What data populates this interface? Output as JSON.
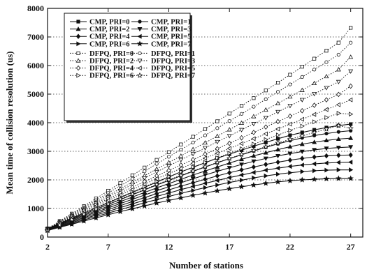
{
  "chart_data": {
    "type": "line",
    "xlabel": "Number of stations",
    "ylabel": "Mean time of collision resolution (us)",
    "xlim": [
      2,
      28
    ],
    "ylim": [
      0,
      8000
    ],
    "xticks": [
      2,
      7,
      12,
      17,
      22,
      27
    ],
    "yticks": [
      0,
      1000,
      2000,
      3000,
      4000,
      5000,
      6000,
      7000,
      8000
    ],
    "grid": "horizontal dotted",
    "legend_placement": "top-left",
    "x": [
      2,
      3,
      4,
      5,
      6,
      7,
      8,
      9,
      10,
      11,
      12,
      13,
      14,
      15,
      16,
      17,
      18,
      19,
      20,
      21,
      22,
      23,
      24,
      25,
      26,
      27
    ],
    "series": [
      {
        "name": "CMP, PRI=0",
        "marker": "square",
        "style": "solid",
        "values": [
          300,
          480,
          660,
          840,
          1020,
          1200,
          1380,
          1560,
          1740,
          1920,
          2100,
          2280,
          2440,
          2600,
          2760,
          2900,
          3040,
          3180,
          3310,
          3440,
          3560,
          3660,
          3750,
          3830,
          3900,
          3950
        ]
      },
      {
        "name": "CMP, PRI=1",
        "marker": "circle",
        "style": "solid",
        "values": [
          290,
          460,
          630,
          800,
          970,
          1140,
          1310,
          1480,
          1650,
          1820,
          1980,
          2140,
          2300,
          2450,
          2600,
          2740,
          2880,
          3010,
          3140,
          3260,
          3370,
          3470,
          3550,
          3620,
          3680,
          3720
        ]
      },
      {
        "name": "CMP, PRI=2",
        "marker": "triangle-up",
        "style": "solid",
        "values": [
          280,
          440,
          600,
          760,
          920,
          1080,
          1240,
          1400,
          1560,
          1720,
          1870,
          2020,
          2170,
          2310,
          2450,
          2590,
          2720,
          2840,
          2950,
          3060,
          3160,
          3250,
          3320,
          3380,
          3430,
          3460
        ]
      },
      {
        "name": "CMP, PRI=3",
        "marker": "triangle-down",
        "style": "solid",
        "values": [
          270,
          420,
          570,
          720,
          870,
          1020,
          1170,
          1320,
          1470,
          1620,
          1760,
          1900,
          2040,
          2170,
          2300,
          2420,
          2540,
          2650,
          2750,
          2840,
          2920,
          2990,
          3050,
          3100,
          3130,
          3150
        ]
      },
      {
        "name": "CMP, PRI=4",
        "marker": "diamond",
        "style": "solid",
        "values": [
          260,
          400,
          540,
          680,
          820,
          960,
          1100,
          1240,
          1380,
          1520,
          1650,
          1780,
          1900,
          2020,
          2140,
          2250,
          2350,
          2450,
          2540,
          2620,
          2690,
          2750,
          2800,
          2840,
          2860,
          2870
        ]
      },
      {
        "name": "CMP, PRI=5",
        "marker": "triangle-left",
        "style": "solid",
        "values": [
          250,
          380,
          510,
          640,
          770,
          900,
          1030,
          1160,
          1290,
          1420,
          1540,
          1660,
          1770,
          1880,
          1980,
          2080,
          2170,
          2260,
          2340,
          2410,
          2470,
          2520,
          2560,
          2590,
          2610,
          2620
        ]
      },
      {
        "name": "CMP, PRI=6",
        "marker": "triangle-right",
        "style": "solid",
        "values": [
          240,
          360,
          480,
          600,
          720,
          840,
          960,
          1080,
          1200,
          1310,
          1420,
          1530,
          1630,
          1730,
          1820,
          1910,
          1990,
          2070,
          2140,
          2200,
          2250,
          2290,
          2320,
          2340,
          2350,
          2350
        ]
      },
      {
        "name": "CMP, PRI=7",
        "marker": "star",
        "style": "solid",
        "values": [
          230,
          340,
          450,
          560,
          670,
          780,
          890,
          990,
          1090,
          1190,
          1280,
          1370,
          1460,
          1540,
          1620,
          1690,
          1760,
          1820,
          1880,
          1930,
          1970,
          2000,
          2020,
          2040,
          2050,
          2050
        ]
      },
      {
        "name": "DFPQ, PRI=0",
        "marker": "square",
        "style": "dotted",
        "values": [
          300,
          560,
          820,
          1080,
          1350,
          1620,
          1890,
          2160,
          2430,
          2700,
          2970,
          3240,
          3510,
          3780,
          4050,
          4320,
          4590,
          4860,
          5130,
          5400,
          5680,
          5960,
          6240,
          6520,
          6800,
          7320
        ]
      },
      {
        "name": "DFPQ, PRI=1",
        "marker": "circle",
        "style": "dotted",
        "values": [
          290,
          540,
          790,
          1040,
          1290,
          1540,
          1790,
          2040,
          2300,
          2560,
          2810,
          3060,
          3310,
          3560,
          3810,
          4060,
          4310,
          4560,
          4820,
          5080,
          5340,
          5600,
          5860,
          6120,
          6380,
          6800
        ]
      },
      {
        "name": "DFPQ, PRI=2",
        "marker": "triangle-up",
        "style": "dotted",
        "values": [
          280,
          520,
          760,
          1000,
          1230,
          1460,
          1690,
          1920,
          2150,
          2380,
          2610,
          2840,
          3070,
          3300,
          3530,
          3760,
          3990,
          4220,
          4450,
          4680,
          4910,
          5140,
          5380,
          5620,
          5860,
          6300
        ]
      },
      {
        "name": "DFPQ, PRI=3",
        "marker": "triangle-down",
        "style": "dotted",
        "values": [
          270,
          500,
          730,
          960,
          1180,
          1400,
          1620,
          1840,
          2060,
          2280,
          2490,
          2700,
          2910,
          3120,
          3330,
          3540,
          3750,
          3960,
          4170,
          4380,
          4590,
          4800,
          5010,
          5220,
          5430,
          5800
        ]
      },
      {
        "name": "DFPQ, PRI=4",
        "marker": "diamond",
        "style": "dotted",
        "values": [
          260,
          480,
          700,
          920,
          1130,
          1340,
          1540,
          1740,
          1940,
          2140,
          2330,
          2520,
          2710,
          2900,
          3090,
          3280,
          3470,
          3660,
          3850,
          4040,
          4230,
          4420,
          4610,
          4800,
          4990,
          5280
        ]
      },
      {
        "name": "DFPQ, PRI=5",
        "marker": "triangle-left",
        "style": "dotted",
        "values": [
          250,
          460,
          670,
          880,
          1080,
          1280,
          1470,
          1660,
          1850,
          2040,
          2220,
          2400,
          2580,
          2760,
          2930,
          3100,
          3270,
          3440,
          3610,
          3780,
          3950,
          4120,
          4290,
          4460,
          4630,
          4800
        ]
      },
      {
        "name": "DFPQ, PRI=6",
        "marker": "triangle-right",
        "style": "dotted",
        "values": [
          240,
          440,
          640,
          840,
          1030,
          1220,
          1400,
          1580,
          1760,
          1940,
          2110,
          2280,
          2450,
          2610,
          2770,
          2930,
          3090,
          3250,
          3410,
          3570,
          3730,
          3880,
          4030,
          4180,
          4330,
          4300
        ]
      },
      {
        "name": "DFPQ, PRI=7",
        "marker": "star",
        "style": "dotted",
        "values": [
          230,
          420,
          610,
          800,
          980,
          1160,
          1330,
          1500,
          1670,
          1840,
          2000,
          2160,
          2310,
          2460,
          2610,
          2750,
          2890,
          3030,
          3160,
          3290,
          3420,
          3540,
          3660,
          3780,
          3900,
          3800
        ]
      }
    ]
  }
}
